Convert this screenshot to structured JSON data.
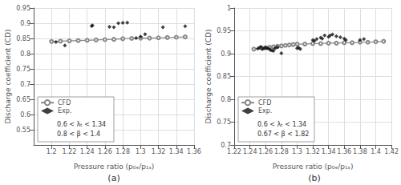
{
  "chart_data": [
    {
      "type": "line",
      "title": "(a)",
      "x_label": "Pressure ratio (p₀ₑ/p₁ₛ)",
      "y_label": "Discharge coefficient (CD)",
      "series": [
        {
          "name": "CFD",
          "type": "line",
          "color": "#888888",
          "marker": "circle",
          "x": [
            1.2,
            1.21,
            1.22,
            1.23,
            1.24,
            1.25,
            1.26,
            1.27,
            1.28,
            1.29,
            1.3,
            1.31,
            1.32,
            1.33,
            1.34,
            1.35
          ],
          "values": [
            0.84,
            0.841,
            0.842,
            0.843,
            0.844,
            0.845,
            0.846,
            0.847,
            0.849,
            0.85,
            0.851,
            0.851,
            0.852,
            0.853,
            0.854,
            0.855
          ]
        },
        {
          "name": "Exp.",
          "type": "scatter",
          "color": "#111111",
          "marker": "diamond",
          "x": [
            1.205,
            1.215,
            1.245,
            1.246,
            1.265,
            1.27,
            1.275,
            1.28,
            1.285,
            1.295,
            1.3,
            1.305,
            1.325,
            1.35
          ],
          "values": [
            0.838,
            0.827,
            0.891,
            0.893,
            0.888,
            0.887,
            0.9,
            0.901,
            0.902,
            0.851,
            0.856,
            0.864,
            0.887,
            0.89
          ]
        }
      ],
      "annotations": [
        "0.6 < λₜ < 1.34",
        "0.8 < β < 1.4"
      ],
      "xlim": [
        1.18,
        1.36
      ],
      "xticks": [
        1.2,
        1.22,
        1.24,
        1.26,
        1.28,
        1.3,
        1.32,
        1.34,
        1.36
      ],
      "ylim": [
        0.5,
        0.95
      ],
      "yticks": [
        0.55,
        0.6,
        0.65,
        0.7,
        0.75,
        0.8,
        0.85,
        0.9,
        0.95
      ],
      "grid": true,
      "legend": "lower left"
    },
    {
      "type": "line",
      "title": "(b)",
      "x_label": "Pressure ratio (p₀ₑ/p₁ₛ)",
      "y_label": "Discharge coefficient (CD)",
      "series": [
        {
          "name": "CFD",
          "type": "line",
          "color": "#888888",
          "marker": "circle",
          "x": [
            1.245,
            1.255,
            1.26,
            1.265,
            1.27,
            1.275,
            1.28,
            1.285,
            1.29,
            1.295,
            1.3,
            1.31,
            1.32,
            1.33,
            1.34,
            1.35,
            1.36,
            1.37,
            1.38,
            1.39,
            1.4,
            1.41
          ],
          "values": [
            0.91,
            0.912,
            0.913,
            0.914,
            0.915,
            0.916,
            0.917,
            0.918,
            0.919,
            0.92,
            0.921,
            0.921,
            0.922,
            0.922,
            0.923,
            0.923,
            0.924,
            0.924,
            0.925,
            0.925,
            0.926,
            0.927
          ]
        },
        {
          "name": "Exp.",
          "type": "scatter",
          "color": "#111111",
          "marker": "diamond",
          "x": [
            1.25,
            1.252,
            1.254,
            1.256,
            1.258,
            1.26,
            1.262,
            1.264,
            1.266,
            1.268,
            1.27,
            1.272,
            1.275,
            1.28,
            1.3,
            1.302,
            1.304,
            1.32,
            1.322,
            1.325,
            1.33,
            1.332,
            1.335,
            1.34,
            1.342,
            1.345,
            1.35,
            1.355,
            1.36,
            1.362,
            1.38,
            1.385
          ],
          "values": [
            0.911,
            0.913,
            0.915,
            0.91,
            0.912,
            0.913,
            0.912,
            0.911,
            0.908,
            0.907,
            0.906,
            0.912,
            0.914,
            0.901,
            0.912,
            0.913,
            0.91,
            0.93,
            0.928,
            0.932,
            0.935,
            0.933,
            0.94,
            0.937,
            0.94,
            0.942,
            0.938,
            0.936,
            0.933,
            0.93,
            0.93,
            0.932
          ]
        }
      ],
      "annotations": [
        "0.6 < λₜ < 1.34",
        "0.67 < β < 1.82"
      ],
      "xlim": [
        1.22,
        1.42
      ],
      "xticks": [
        1.22,
        1.24,
        1.26,
        1.28,
        1.3,
        1.32,
        1.34,
        1.36,
        1.38,
        1.4,
        1.42
      ],
      "ylim": [
        0.7,
        1.0
      ],
      "yticks": [
        0.7,
        0.75,
        0.8,
        0.85,
        0.9,
        0.95,
        1
      ],
      "grid": true,
      "legend": "lower left"
    }
  ]
}
